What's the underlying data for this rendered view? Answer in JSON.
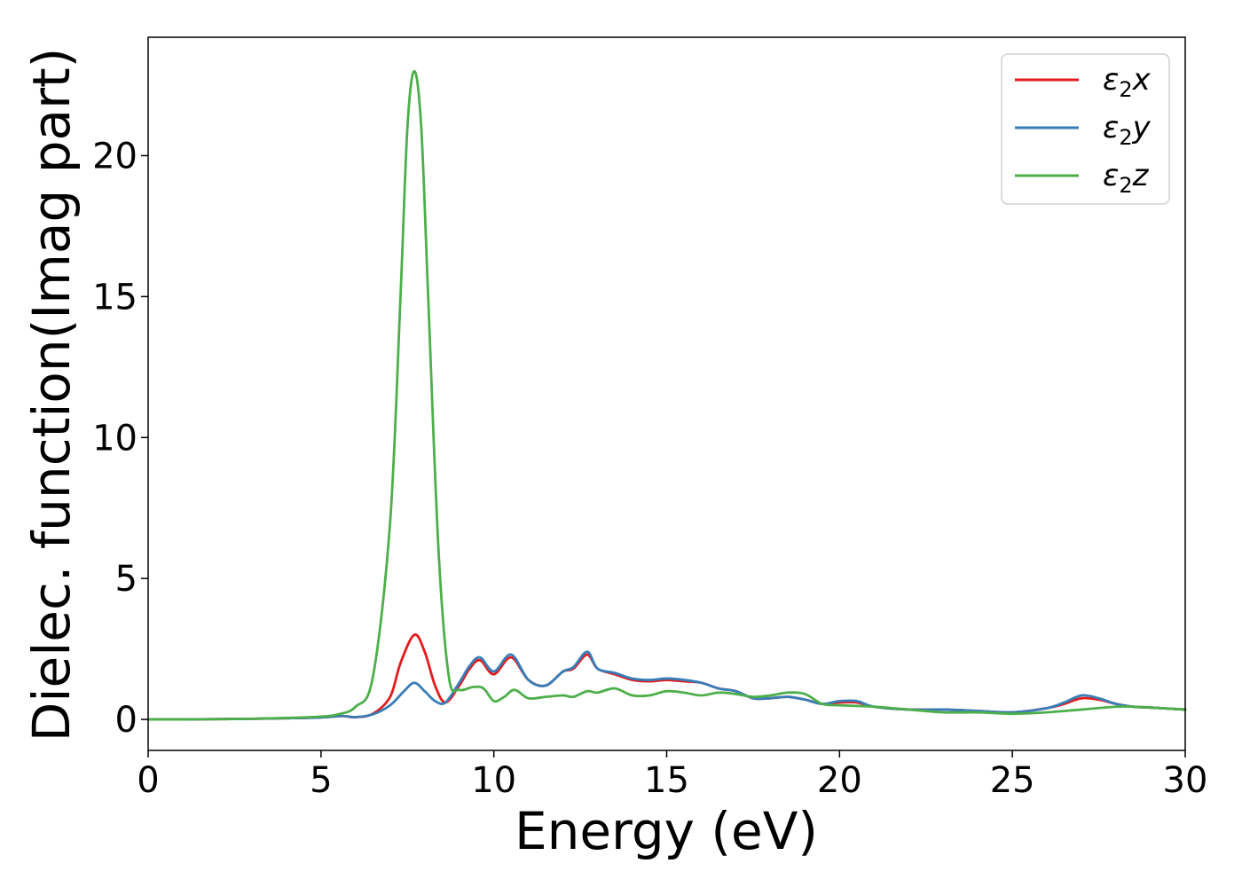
{
  "chart_data": {
    "type": "line",
    "xlabel": "Energy (eV)",
    "ylabel": "Dielec. function(Imag part)",
    "xlim": [
      0,
      30
    ],
    "ylim": [
      -1.1,
      24.2
    ],
    "xticks": [
      0,
      5,
      10,
      15,
      20,
      25,
      30
    ],
    "yticks": [
      0,
      5,
      10,
      15,
      20
    ],
    "grid": false,
    "legend_position": "top-right",
    "series": [
      {
        "name": "ε2x",
        "legend_main": "ε",
        "legend_sub": "2",
        "legend_suffix": "x",
        "color": "#e41a1c",
        "points": [
          [
            0,
            0
          ],
          [
            1,
            0
          ],
          [
            2,
            0.01
          ],
          [
            3,
            0.02
          ],
          [
            4,
            0.04
          ],
          [
            5,
            0.07
          ],
          [
            5.6,
            0.12
          ],
          [
            6,
            0.08
          ],
          [
            6.5,
            0.2
          ],
          [
            7,
            0.8
          ],
          [
            7.3,
            2.0
          ],
          [
            7.7,
            3.0
          ],
          [
            8.0,
            2.4
          ],
          [
            8.3,
            1.2
          ],
          [
            8.6,
            0.6
          ],
          [
            9.0,
            1.2
          ],
          [
            9.3,
            1.8
          ],
          [
            9.6,
            2.1
          ],
          [
            10.0,
            1.6
          ],
          [
            10.5,
            2.2
          ],
          [
            11.0,
            1.4
          ],
          [
            11.5,
            1.2
          ],
          [
            12.0,
            1.7
          ],
          [
            12.3,
            1.8
          ],
          [
            12.7,
            2.3
          ],
          [
            13.0,
            1.8
          ],
          [
            13.5,
            1.6
          ],
          [
            14.0,
            1.4
          ],
          [
            14.5,
            1.35
          ],
          [
            15.0,
            1.4
          ],
          [
            15.5,
            1.35
          ],
          [
            16.0,
            1.3
          ],
          [
            16.5,
            1.1
          ],
          [
            17.0,
            1.0
          ],
          [
            17.5,
            0.75
          ],
          [
            18.0,
            0.75
          ],
          [
            18.5,
            0.8
          ],
          [
            19.0,
            0.7
          ],
          [
            19.5,
            0.55
          ],
          [
            20.0,
            0.6
          ],
          [
            20.5,
            0.6
          ],
          [
            21.0,
            0.45
          ],
          [
            22.0,
            0.35
          ],
          [
            23.0,
            0.35
          ],
          [
            24.0,
            0.3
          ],
          [
            25.0,
            0.25
          ],
          [
            26.0,
            0.4
          ],
          [
            26.5,
            0.55
          ],
          [
            27.0,
            0.75
          ],
          [
            27.5,
            0.7
          ],
          [
            28.0,
            0.55
          ],
          [
            28.5,
            0.45
          ],
          [
            29.0,
            0.42
          ],
          [
            30.0,
            0.35
          ]
        ]
      },
      {
        "name": "ε2y",
        "legend_main": "ε",
        "legend_sub": "2",
        "legend_suffix": "y",
        "color": "#377eb8",
        "points": [
          [
            0,
            0
          ],
          [
            1,
            0
          ],
          [
            2,
            0.01
          ],
          [
            3,
            0.02
          ],
          [
            4,
            0.04
          ],
          [
            5,
            0.07
          ],
          [
            5.6,
            0.12
          ],
          [
            6,
            0.08
          ],
          [
            6.5,
            0.18
          ],
          [
            7,
            0.5
          ],
          [
            7.4,
            1.0
          ],
          [
            7.7,
            1.3
          ],
          [
            8.0,
            1.0
          ],
          [
            8.3,
            0.65
          ],
          [
            8.6,
            0.6
          ],
          [
            9.0,
            1.3
          ],
          [
            9.3,
            1.9
          ],
          [
            9.6,
            2.2
          ],
          [
            10.0,
            1.7
          ],
          [
            10.5,
            2.3
          ],
          [
            11.0,
            1.4
          ],
          [
            11.5,
            1.2
          ],
          [
            12.0,
            1.7
          ],
          [
            12.3,
            1.85
          ],
          [
            12.7,
            2.4
          ],
          [
            13.0,
            1.8
          ],
          [
            13.5,
            1.65
          ],
          [
            14.0,
            1.45
          ],
          [
            14.5,
            1.4
          ],
          [
            15.0,
            1.45
          ],
          [
            15.5,
            1.4
          ],
          [
            16.0,
            1.3
          ],
          [
            16.5,
            1.1
          ],
          [
            17.0,
            1.0
          ],
          [
            17.5,
            0.75
          ],
          [
            18.0,
            0.75
          ],
          [
            18.5,
            0.8
          ],
          [
            19.0,
            0.7
          ],
          [
            19.5,
            0.55
          ],
          [
            20.0,
            0.65
          ],
          [
            20.5,
            0.65
          ],
          [
            21.0,
            0.45
          ],
          [
            22.0,
            0.35
          ],
          [
            23.0,
            0.35
          ],
          [
            24.0,
            0.3
          ],
          [
            25.0,
            0.25
          ],
          [
            26.0,
            0.4
          ],
          [
            26.5,
            0.6
          ],
          [
            27.0,
            0.85
          ],
          [
            27.5,
            0.75
          ],
          [
            28.0,
            0.55
          ],
          [
            28.5,
            0.45
          ],
          [
            29.0,
            0.42
          ],
          [
            30.0,
            0.35
          ]
        ]
      },
      {
        "name": "ε2z",
        "legend_main": "ε",
        "legend_sub": "2",
        "legend_suffix": "z",
        "color": "#4daf4a",
        "points": [
          [
            0,
            0
          ],
          [
            1,
            0
          ],
          [
            2,
            0.01
          ],
          [
            3,
            0.02
          ],
          [
            4,
            0.05
          ],
          [
            5,
            0.1
          ],
          [
            5.5,
            0.18
          ],
          [
            6.0,
            0.45
          ],
          [
            6.5,
            1.5
          ],
          [
            7.0,
            7.0
          ],
          [
            7.3,
            15.0
          ],
          [
            7.5,
            21.0
          ],
          [
            7.7,
            23.0
          ],
          [
            7.9,
            21.0
          ],
          [
            8.1,
            15.0
          ],
          [
            8.4,
            6.0
          ],
          [
            8.7,
            1.5
          ],
          [
            9.0,
            1.05
          ],
          [
            9.4,
            1.15
          ],
          [
            9.7,
            1.1
          ],
          [
            10.0,
            0.65
          ],
          [
            10.3,
            0.8
          ],
          [
            10.6,
            1.05
          ],
          [
            11.0,
            0.75
          ],
          [
            11.5,
            0.8
          ],
          [
            12.0,
            0.85
          ],
          [
            12.3,
            0.8
          ],
          [
            12.7,
            1.0
          ],
          [
            13.0,
            0.95
          ],
          [
            13.5,
            1.1
          ],
          [
            14.0,
            0.85
          ],
          [
            14.5,
            0.85
          ],
          [
            15.0,
            1.0
          ],
          [
            15.5,
            0.95
          ],
          [
            16.0,
            0.85
          ],
          [
            16.5,
            0.95
          ],
          [
            17.0,
            0.9
          ],
          [
            17.5,
            0.8
          ],
          [
            18.0,
            0.85
          ],
          [
            18.5,
            0.95
          ],
          [
            19.0,
            0.9
          ],
          [
            19.5,
            0.55
          ],
          [
            20.0,
            0.5
          ],
          [
            21.0,
            0.45
          ],
          [
            22.0,
            0.35
          ],
          [
            23.0,
            0.25
          ],
          [
            24.0,
            0.25
          ],
          [
            25.0,
            0.2
          ],
          [
            26.0,
            0.25
          ],
          [
            27.0,
            0.35
          ],
          [
            28.0,
            0.45
          ],
          [
            28.5,
            0.45
          ],
          [
            29.0,
            0.42
          ],
          [
            30.0,
            0.35
          ]
        ]
      }
    ]
  }
}
